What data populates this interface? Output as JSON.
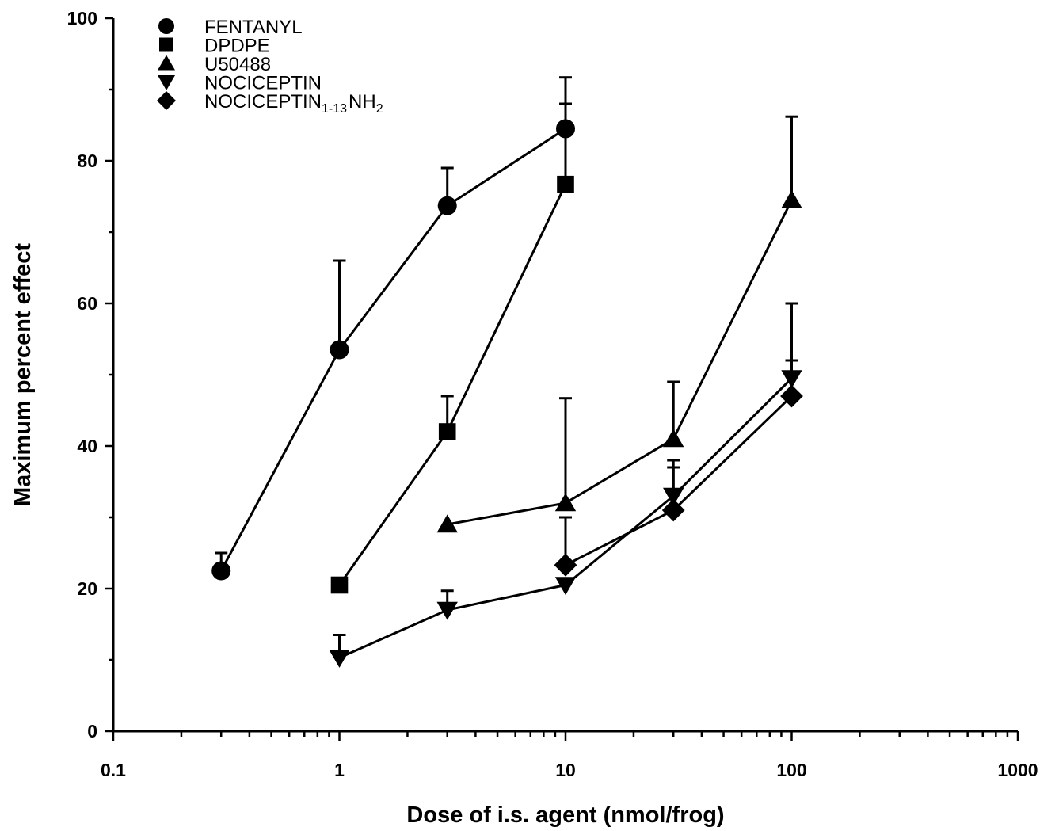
{
  "chart_data": {
    "type": "line",
    "title": "",
    "xlabel": "Dose of i.s. agent (nmol/frog)",
    "ylabel": "Maximum percent effect",
    "x_scale": "log",
    "xlim": [
      0.1,
      1000
    ],
    "ylim": [
      0,
      100
    ],
    "x_ticks": [
      0.1,
      1,
      10,
      100,
      1000
    ],
    "x_tick_labels": [
      "0.1",
      "1",
      "10",
      "100",
      "1000"
    ],
    "y_ticks": [
      0,
      20,
      40,
      60,
      80,
      100
    ],
    "y_tick_labels": [
      "0",
      "20",
      "40",
      "60",
      "80",
      "100"
    ],
    "grid": false,
    "legend_position": "top-left",
    "series": [
      {
        "name": "FENTANYL",
        "marker": "circle",
        "x": [
          0.3,
          1,
          3,
          10
        ],
        "y": [
          22.5,
          53.5,
          73.7,
          84.5
        ],
        "error_upper": [
          25.0,
          66.0,
          79.0,
          91.7
        ]
      },
      {
        "name": "DPDPE",
        "marker": "square",
        "x": [
          1,
          3,
          10
        ],
        "y": [
          20.5,
          42.0,
          76.7
        ],
        "error_upper": [
          null,
          47.0,
          88.0
        ]
      },
      {
        "name": "U50488",
        "marker": "triangle-up",
        "x": [
          3,
          10,
          30,
          100
        ],
        "y": [
          29.0,
          32.0,
          41.0,
          74.5
        ],
        "error_upper": [
          null,
          46.7,
          49.0,
          86.2
        ]
      },
      {
        "name": "NOCICEPTIN",
        "marker": "triangle-down",
        "x": [
          1,
          3,
          10,
          30,
          100
        ],
        "y": [
          10.3,
          17.0,
          20.5,
          33.0,
          49.5
        ],
        "error_upper": [
          13.5,
          19.7,
          null,
          37.0,
          52.0
        ]
      },
      {
        "name": "NOCICEPTIN1-13NH2",
        "marker": "diamond",
        "x": [
          10,
          30,
          100
        ],
        "y": [
          23.3,
          31.0,
          47.0
        ],
        "error_upper": [
          30.0,
          38.0,
          60.0
        ]
      }
    ],
    "legend": [
      {
        "base": "FENTANYL",
        "sub": "",
        "after": "",
        "after_sub": ""
      },
      {
        "base": "DPDPE",
        "sub": "",
        "after": "",
        "after_sub": ""
      },
      {
        "base": "U50488",
        "sub": "",
        "after": "",
        "after_sub": ""
      },
      {
        "base": "NOCICEPTIN",
        "sub": "",
        "after": "",
        "after_sub": ""
      },
      {
        "base": "NOCICEPTIN",
        "sub": "1-13",
        "after": "NH",
        "after_sub": "2"
      }
    ]
  }
}
